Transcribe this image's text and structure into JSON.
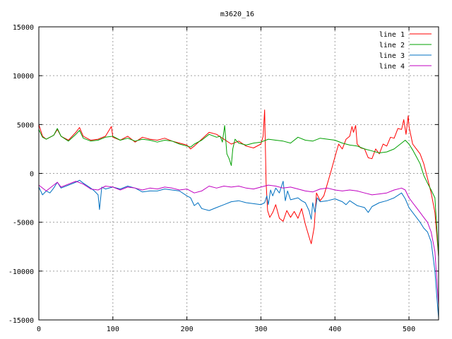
{
  "chart_data": {
    "type": "line",
    "title": "m3620_16",
    "xlabel": "",
    "ylabel": "",
    "xlim": [
      0,
      540
    ],
    "ylim": [
      -15000,
      15000
    ],
    "xticks": [
      0,
      100,
      200,
      300,
      400,
      500
    ],
    "yticks": [
      -15000,
      -10000,
      -5000,
      0,
      5000,
      10000,
      15000
    ],
    "grid": true,
    "legend_position": "top-right",
    "series": [
      {
        "name": "line 1",
        "color": "#ff0000",
        "points": [
          [
            0,
            5000
          ],
          [
            5,
            3800
          ],
          [
            10,
            3500
          ],
          [
            20,
            3900
          ],
          [
            25,
            4500
          ],
          [
            30,
            3800
          ],
          [
            40,
            3400
          ],
          [
            50,
            4200
          ],
          [
            55,
            4700
          ],
          [
            60,
            3800
          ],
          [
            70,
            3400
          ],
          [
            80,
            3500
          ],
          [
            90,
            3800
          ],
          [
            98,
            4800
          ],
          [
            100,
            3700
          ],
          [
            110,
            3400
          ],
          [
            120,
            3800
          ],
          [
            130,
            3200
          ],
          [
            140,
            3700
          ],
          [
            150,
            3500
          ],
          [
            160,
            3400
          ],
          [
            170,
            3600
          ],
          [
            180,
            3300
          ],
          [
            190,
            3100
          ],
          [
            200,
            2900
          ],
          [
            205,
            2500
          ],
          [
            210,
            2800
          ],
          [
            220,
            3500
          ],
          [
            230,
            4200
          ],
          [
            240,
            4000
          ],
          [
            250,
            3500
          ],
          [
            260,
            3000
          ],
          [
            270,
            3300
          ],
          [
            280,
            2800
          ],
          [
            290,
            2600
          ],
          [
            300,
            3000
          ],
          [
            303,
            3800
          ],
          [
            305,
            6500
          ],
          [
            307,
            -1000
          ],
          [
            309,
            -3800
          ],
          [
            312,
            -4500
          ],
          [
            316,
            -4000
          ],
          [
            320,
            -3200
          ],
          [
            325,
            -4600
          ],
          [
            330,
            -4900
          ],
          [
            335,
            -3800
          ],
          [
            340,
            -4500
          ],
          [
            345,
            -3900
          ],
          [
            350,
            -4600
          ],
          [
            355,
            -3600
          ],
          [
            360,
            -5200
          ],
          [
            365,
            -6500
          ],
          [
            368,
            -7200
          ],
          [
            372,
            -5500
          ],
          [
            375,
            -2000
          ],
          [
            380,
            -2800
          ],
          [
            385,
            -2300
          ],
          [
            390,
            -1000
          ],
          [
            395,
            300
          ],
          [
            400,
            1700
          ],
          [
            405,
            3000
          ],
          [
            410,
            2500
          ],
          [
            415,
            3500
          ],
          [
            420,
            3800
          ],
          [
            423,
            4800
          ],
          [
            425,
            4200
          ],
          [
            428,
            4900
          ],
          [
            430,
            3000
          ],
          [
            435,
            2600
          ],
          [
            440,
            2500
          ],
          [
            445,
            1600
          ],
          [
            450,
            1500
          ],
          [
            455,
            2500
          ],
          [
            460,
            2000
          ],
          [
            465,
            3000
          ],
          [
            470,
            2800
          ],
          [
            475,
            3700
          ],
          [
            480,
            3600
          ],
          [
            485,
            4600
          ],
          [
            490,
            4500
          ],
          [
            493,
            5500
          ],
          [
            496,
            4000
          ],
          [
            499,
            5900
          ],
          [
            500,
            4800
          ],
          [
            505,
            3000
          ],
          [
            510,
            2500
          ],
          [
            515,
            2000
          ],
          [
            520,
            1000
          ],
          [
            525,
            -500
          ],
          [
            530,
            -2000
          ],
          [
            535,
            -4000
          ],
          [
            540,
            -8500
          ]
        ]
      },
      {
        "name": "line 2",
        "color": "#00a000",
        "points": [
          [
            0,
            4500
          ],
          [
            5,
            3700
          ],
          [
            10,
            3500
          ],
          [
            20,
            3900
          ],
          [
            25,
            4600
          ],
          [
            30,
            3800
          ],
          [
            40,
            3300
          ],
          [
            50,
            4000
          ],
          [
            55,
            4400
          ],
          [
            60,
            3600
          ],
          [
            70,
            3300
          ],
          [
            80,
            3400
          ],
          [
            90,
            3700
          ],
          [
            100,
            3800
          ],
          [
            110,
            3400
          ],
          [
            120,
            3600
          ],
          [
            130,
            3300
          ],
          [
            140,
            3500
          ],
          [
            150,
            3400
          ],
          [
            160,
            3200
          ],
          [
            170,
            3400
          ],
          [
            180,
            3300
          ],
          [
            190,
            3000
          ],
          [
            200,
            2800
          ],
          [
            205,
            2700
          ],
          [
            210,
            3000
          ],
          [
            220,
            3400
          ],
          [
            230,
            4000
          ],
          [
            240,
            3700
          ],
          [
            245,
            3800
          ],
          [
            248,
            3200
          ],
          [
            251,
            4900
          ],
          [
            254,
            2000
          ],
          [
            257,
            1500
          ],
          [
            260,
            800
          ],
          [
            262,
            2500
          ],
          [
            265,
            3500
          ],
          [
            270,
            3100
          ],
          [
            280,
            2900
          ],
          [
            290,
            3100
          ],
          [
            300,
            3200
          ],
          [
            310,
            3500
          ],
          [
            320,
            3400
          ],
          [
            330,
            3300
          ],
          [
            340,
            3100
          ],
          [
            350,
            3700
          ],
          [
            360,
            3400
          ],
          [
            370,
            3300
          ],
          [
            380,
            3600
          ],
          [
            390,
            3500
          ],
          [
            400,
            3400
          ],
          [
            410,
            3100
          ],
          [
            420,
            2900
          ],
          [
            430,
            2800
          ],
          [
            440,
            2500
          ],
          [
            450,
            2300
          ],
          [
            460,
            2100
          ],
          [
            470,
            2200
          ],
          [
            480,
            2500
          ],
          [
            490,
            3100
          ],
          [
            495,
            3400
          ],
          [
            500,
            3000
          ],
          [
            505,
            2400
          ],
          [
            510,
            1700
          ],
          [
            515,
            1000
          ],
          [
            520,
            -200
          ],
          [
            525,
            -1000
          ],
          [
            530,
            -1700
          ],
          [
            535,
            -2500
          ],
          [
            540,
            -8500
          ]
        ]
      },
      {
        "name": "line 3",
        "color": "#0070c0",
        "points": [
          [
            0,
            -1400
          ],
          [
            5,
            -2200
          ],
          [
            10,
            -1800
          ],
          [
            15,
            -2000
          ],
          [
            20,
            -1500
          ],
          [
            25,
            -900
          ],
          [
            30,
            -1500
          ],
          [
            40,
            -1200
          ],
          [
            50,
            -900
          ],
          [
            55,
            -700
          ],
          [
            60,
            -1000
          ],
          [
            70,
            -1500
          ],
          [
            75,
            -1800
          ],
          [
            80,
            -2200
          ],
          [
            82,
            -3700
          ],
          [
            85,
            -1400
          ],
          [
            90,
            -1600
          ],
          [
            100,
            -1400
          ],
          [
            110,
            -1600
          ],
          [
            120,
            -1300
          ],
          [
            130,
            -1500
          ],
          [
            140,
            -1900
          ],
          [
            150,
            -1800
          ],
          [
            160,
            -1800
          ],
          [
            170,
            -1600
          ],
          [
            180,
            -1700
          ],
          [
            190,
            -1800
          ],
          [
            200,
            -2300
          ],
          [
            205,
            -2500
          ],
          [
            210,
            -3300
          ],
          [
            215,
            -3000
          ],
          [
            220,
            -3600
          ],
          [
            230,
            -3800
          ],
          [
            240,
            -3500
          ],
          [
            250,
            -3200
          ],
          [
            260,
            -2900
          ],
          [
            270,
            -2800
          ],
          [
            280,
            -3000
          ],
          [
            290,
            -3100
          ],
          [
            300,
            -3200
          ],
          [
            305,
            -3000
          ],
          [
            308,
            -2300
          ],
          [
            310,
            -3200
          ],
          [
            313,
            -1700
          ],
          [
            316,
            -2300
          ],
          [
            320,
            -1500
          ],
          [
            325,
            -2000
          ],
          [
            330,
            -800
          ],
          [
            333,
            -2800
          ],
          [
            336,
            -1800
          ],
          [
            340,
            -2700
          ],
          [
            350,
            -2500
          ],
          [
            355,
            -2800
          ],
          [
            360,
            -3000
          ],
          [
            365,
            -3800
          ],
          [
            368,
            -4700
          ],
          [
            370,
            -3000
          ],
          [
            373,
            -4000
          ],
          [
            376,
            -2500
          ],
          [
            380,
            -2900
          ],
          [
            390,
            -2800
          ],
          [
            400,
            -2600
          ],
          [
            410,
            -2900
          ],
          [
            415,
            -3200
          ],
          [
            420,
            -2800
          ],
          [
            430,
            -3300
          ],
          [
            440,
            -3500
          ],
          [
            445,
            -4000
          ],
          [
            450,
            -3400
          ],
          [
            460,
            -3000
          ],
          [
            470,
            -2800
          ],
          [
            480,
            -2500
          ],
          [
            490,
            -2000
          ],
          [
            495,
            -2600
          ],
          [
            500,
            -3500
          ],
          [
            505,
            -4000
          ],
          [
            510,
            -4500
          ],
          [
            515,
            -5000
          ],
          [
            520,
            -5600
          ],
          [
            525,
            -6000
          ],
          [
            530,
            -7000
          ],
          [
            535,
            -10000
          ],
          [
            538,
            -13000
          ],
          [
            540,
            -14800
          ]
        ]
      },
      {
        "name": "line 4",
        "color": "#c000c0",
        "points": [
          [
            0,
            -1200
          ],
          [
            10,
            -1800
          ],
          [
            20,
            -1200
          ],
          [
            25,
            -900
          ],
          [
            30,
            -1400
          ],
          [
            40,
            -1100
          ],
          [
            50,
            -800
          ],
          [
            60,
            -1100
          ],
          [
            70,
            -1600
          ],
          [
            80,
            -1700
          ],
          [
            90,
            -1300
          ],
          [
            100,
            -1400
          ],
          [
            110,
            -1700
          ],
          [
            120,
            -1400
          ],
          [
            130,
            -1500
          ],
          [
            140,
            -1700
          ],
          [
            150,
            -1500
          ],
          [
            160,
            -1600
          ],
          [
            170,
            -1400
          ],
          [
            180,
            -1500
          ],
          [
            190,
            -1700
          ],
          [
            200,
            -1600
          ],
          [
            210,
            -2000
          ],
          [
            220,
            -1800
          ],
          [
            230,
            -1300
          ],
          [
            240,
            -1500
          ],
          [
            250,
            -1300
          ],
          [
            260,
            -1400
          ],
          [
            270,
            -1300
          ],
          [
            280,
            -1500
          ],
          [
            290,
            -1600
          ],
          [
            300,
            -1400
          ],
          [
            310,
            -1200
          ],
          [
            320,
            -1300
          ],
          [
            330,
            -1500
          ],
          [
            340,
            -1400
          ],
          [
            350,
            -1600
          ],
          [
            360,
            -1800
          ],
          [
            370,
            -1900
          ],
          [
            380,
            -1600
          ],
          [
            390,
            -1500
          ],
          [
            400,
            -1700
          ],
          [
            410,
            -1800
          ],
          [
            420,
            -1700
          ],
          [
            430,
            -1800
          ],
          [
            440,
            -2000
          ],
          [
            450,
            -2200
          ],
          [
            460,
            -2100
          ],
          [
            470,
            -2000
          ],
          [
            480,
            -1700
          ],
          [
            490,
            -1500
          ],
          [
            495,
            -1700
          ],
          [
            500,
            -2500
          ],
          [
            505,
            -3000
          ],
          [
            510,
            -3500
          ],
          [
            515,
            -4000
          ],
          [
            520,
            -4500
          ],
          [
            525,
            -5000
          ],
          [
            530,
            -6000
          ],
          [
            535,
            -8000
          ],
          [
            540,
            -13500
          ]
        ]
      }
    ]
  }
}
